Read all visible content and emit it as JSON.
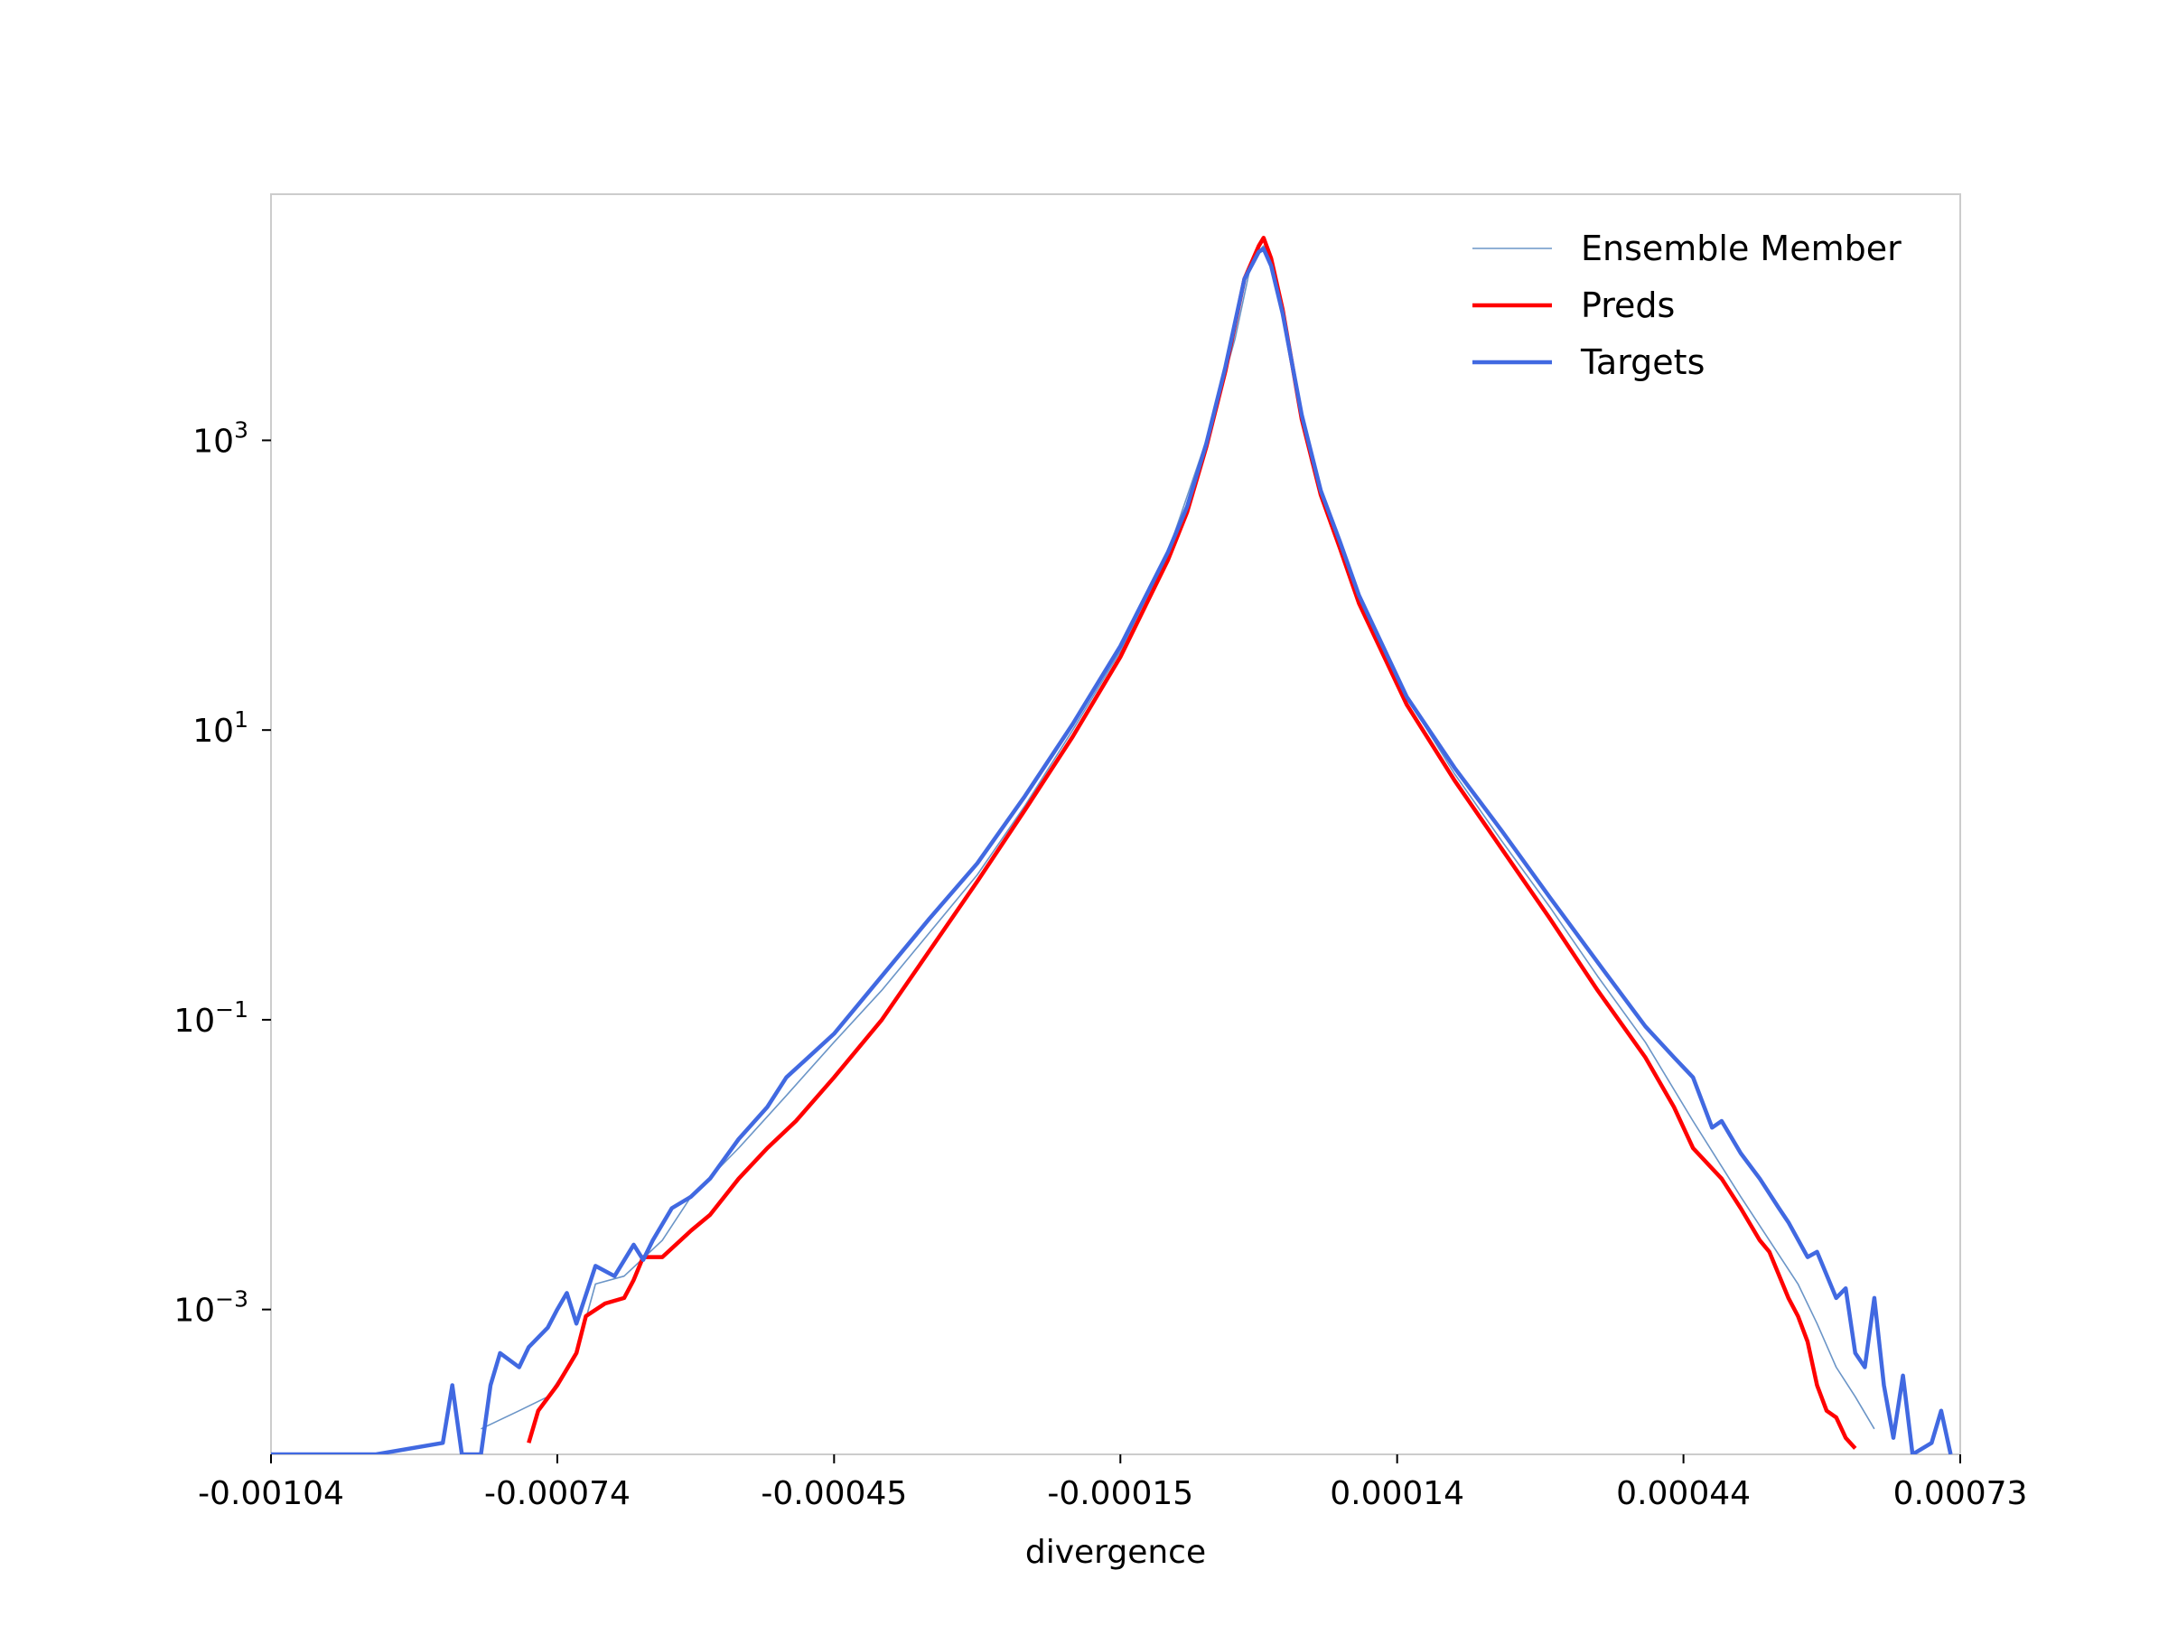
{
  "chart_data": {
    "type": "line",
    "title": "",
    "xlabel": "divergence",
    "ylabel": "",
    "yscale": "log",
    "xlim": [
      -0.00104,
      0.00073
    ],
    "ylim": [
      0.0001,
      50000
    ],
    "grid": false,
    "legend_position": "top-right",
    "x_ticks": [
      -0.00104,
      -0.00074,
      -0.00045,
      -0.00015,
      0.00014,
      0.00044,
      0.00073
    ],
    "x_tick_labels": [
      "-0.00104",
      "-0.00074",
      "-0.00045",
      "-0.00015",
      "0.00014",
      "0.00044",
      "0.00073"
    ],
    "y_ticks": [
      0.001,
      0.1,
      10,
      1000
    ],
    "y_tick_labels": [
      {
        "base": "10",
        "exp": "−3"
      },
      {
        "base": "10",
        "exp": "−1"
      },
      {
        "base": "10",
        "exp": "1"
      },
      {
        "base": "10",
        "exp": "3"
      }
    ],
    "legend": [
      "Ensemble Member",
      "Preds",
      "Targets"
    ],
    "series": [
      {
        "name": "Ensemble Member",
        "color": "#6b95c7",
        "style": "thin",
        "points": [
          [
            -0.00082,
            0.00015
          ],
          [
            -0.00078,
            0.0002
          ],
          [
            -0.00075,
            0.00025
          ],
          [
            -0.00072,
            0.0005
          ],
          [
            -0.0007,
            0.0015
          ],
          [
            -0.00067,
            0.0017
          ],
          [
            -0.00063,
            0.003
          ],
          [
            -0.0006,
            0.006
          ],
          [
            -0.00055,
            0.013
          ],
          [
            -0.0005,
            0.03
          ],
          [
            -0.00045,
            0.07
          ],
          [
            -0.0004,
            0.16
          ],
          [
            -0.00035,
            0.4
          ],
          [
            -0.0003,
            1.0
          ],
          [
            -0.00025,
            3.0
          ],
          [
            -0.0002,
            10
          ],
          [
            -0.00015,
            35
          ],
          [
            -0.0001,
            170
          ],
          [
            -6e-05,
            1000
          ],
          [
            -3e-05,
            5000
          ],
          [
            -1.2e-05,
            18000
          ],
          [
            0.0,
            22000
          ],
          [
            1.2e-05,
            15000
          ],
          [
            3e-05,
            3000
          ],
          [
            5e-05,
            700
          ],
          [
            0.0001,
            80
          ],
          [
            0.00015,
            17
          ],
          [
            0.0002,
            5
          ],
          [
            0.00025,
            1.7
          ],
          [
            0.0003,
            0.6
          ],
          [
            0.00035,
            0.2
          ],
          [
            0.0004,
            0.07
          ],
          [
            0.00045,
            0.02
          ],
          [
            0.0005,
            0.006
          ],
          [
            0.00053,
            0.003
          ],
          [
            0.00056,
            0.0015
          ],
          [
            0.00058,
            0.0008
          ],
          [
            0.0006,
            0.0004
          ],
          [
            0.00062,
            0.00025
          ],
          [
            0.00064,
            0.00015
          ]
        ]
      },
      {
        "name": "Preds",
        "color": "#ff0000",
        "style": "thick",
        "points": [
          [
            -0.00077,
            0.00012
          ],
          [
            -0.00076,
            0.0002
          ],
          [
            -0.00074,
            0.0003
          ],
          [
            -0.00072,
            0.0005
          ],
          [
            -0.00071,
            0.0009
          ],
          [
            -0.00069,
            0.0011
          ],
          [
            -0.00067,
            0.0012
          ],
          [
            -0.00066,
            0.0016
          ],
          [
            -0.00065,
            0.0023
          ],
          [
            -0.00063,
            0.0023
          ],
          [
            -0.0006,
            0.0035
          ],
          [
            -0.00058,
            0.0045
          ],
          [
            -0.00055,
            0.008
          ],
          [
            -0.00052,
            0.013
          ],
          [
            -0.00049,
            0.02
          ],
          [
            -0.00045,
            0.04
          ],
          [
            -0.0004,
            0.1
          ],
          [
            -0.00035,
            0.3
          ],
          [
            -0.0003,
            0.9
          ],
          [
            -0.00025,
            2.8
          ],
          [
            -0.0002,
            9
          ],
          [
            -0.00015,
            32
          ],
          [
            -0.0001,
            150
          ],
          [
            -8e-05,
            320
          ],
          [
            -6e-05,
            900
          ],
          [
            -4e-05,
            3000
          ],
          [
            -2e-05,
            13000
          ],
          [
            -5e-06,
            22000
          ],
          [
            0.0,
            25000
          ],
          [
            8e-06,
            18000
          ],
          [
            2e-05,
            8000
          ],
          [
            4e-05,
            1400
          ],
          [
            6e-05,
            420
          ],
          [
            8e-05,
            180
          ],
          [
            0.0001,
            75
          ],
          [
            0.00015,
            15
          ],
          [
            0.0002,
            4.5
          ],
          [
            0.00025,
            1.5
          ],
          [
            0.0003,
            0.5
          ],
          [
            0.00035,
            0.16
          ],
          [
            0.0004,
            0.055
          ],
          [
            0.00043,
            0.025
          ],
          [
            0.00045,
            0.013
          ],
          [
            0.00048,
            0.008
          ],
          [
            0.0005,
            0.005
          ],
          [
            0.00052,
            0.003
          ],
          [
            0.00053,
            0.0025
          ],
          [
            0.00055,
            0.0012
          ],
          [
            0.00056,
            0.0009
          ],
          [
            0.00057,
            0.0006
          ],
          [
            0.00058,
            0.0003
          ],
          [
            0.00059,
            0.0002
          ],
          [
            0.0006,
            0.00018
          ],
          [
            0.00061,
            0.00013
          ],
          [
            0.00062,
            0.00011
          ]
        ]
      },
      {
        "name": "Targets",
        "color": "#4169e1",
        "style": "thick",
        "points": [
          [
            -0.00104,
            0.0001
          ],
          [
            -0.00096,
            0.0001
          ],
          [
            -0.00093,
            0.0001
          ],
          [
            -0.00086,
            0.00012
          ],
          [
            -0.00085,
            0.0003
          ],
          [
            -0.00084,
            0.0001
          ],
          [
            -0.00082,
            0.0001
          ],
          [
            -0.00081,
            0.0003
          ],
          [
            -0.0008,
            0.0005
          ],
          [
            -0.00078,
            0.0004
          ],
          [
            -0.00077,
            0.00055
          ],
          [
            -0.00075,
            0.00075
          ],
          [
            -0.00074,
            0.001
          ],
          [
            -0.00073,
            0.0013
          ],
          [
            -0.00072,
            0.0008
          ],
          [
            -0.0007,
            0.002
          ],
          [
            -0.00068,
            0.0017
          ],
          [
            -0.00066,
            0.0028
          ],
          [
            -0.00065,
            0.0022
          ],
          [
            -0.00064,
            0.003
          ],
          [
            -0.00062,
            0.005
          ],
          [
            -0.0006,
            0.006
          ],
          [
            -0.00058,
            0.008
          ],
          [
            -0.00055,
            0.015
          ],
          [
            -0.00052,
            0.025
          ],
          [
            -0.0005,
            0.04
          ],
          [
            -0.00045,
            0.08
          ],
          [
            -0.0004,
            0.2
          ],
          [
            -0.00035,
            0.5
          ],
          [
            -0.0003,
            1.2
          ],
          [
            -0.00025,
            3.5
          ],
          [
            -0.0002,
            11
          ],
          [
            -0.00015,
            38
          ],
          [
            -0.0001,
            170
          ],
          [
            -8e-05,
            350
          ],
          [
            -6e-05,
            950
          ],
          [
            -4e-05,
            3200
          ],
          [
            -2e-05,
            13000
          ],
          [
            -5e-06,
            20000
          ],
          [
            0.0,
            21000
          ],
          [
            8e-06,
            16000
          ],
          [
            2e-05,
            7500
          ],
          [
            4e-05,
            1500
          ],
          [
            6e-05,
            450
          ],
          [
            8e-05,
            200
          ],
          [
            0.0001,
            85
          ],
          [
            0.00015,
            17
          ],
          [
            0.0002,
            5.5
          ],
          [
            0.00025,
            2.0
          ],
          [
            0.0003,
            0.7
          ],
          [
            0.00035,
            0.25
          ],
          [
            0.0004,
            0.09
          ],
          [
            0.00043,
            0.055
          ],
          [
            0.00045,
            0.04
          ],
          [
            0.00047,
            0.018
          ],
          [
            0.00048,
            0.02
          ],
          [
            0.0005,
            0.012
          ],
          [
            0.00052,
            0.008
          ],
          [
            0.00054,
            0.005
          ],
          [
            0.00055,
            0.004
          ],
          [
            0.00057,
            0.0023
          ],
          [
            0.00058,
            0.0025
          ],
          [
            0.0006,
            0.0012
          ],
          [
            0.00061,
            0.0014
          ],
          [
            0.00062,
            0.0005
          ],
          [
            0.00063,
            0.0004
          ],
          [
            0.00064,
            0.0012
          ],
          [
            0.00065,
            0.0003
          ],
          [
            0.00066,
            0.00013
          ],
          [
            0.00067,
            0.00035
          ],
          [
            0.00068,
            0.0001
          ],
          [
            0.0007,
            0.00012
          ],
          [
            0.00071,
            0.0002
          ],
          [
            0.00072,
            0.0001
          ]
        ]
      }
    ]
  }
}
